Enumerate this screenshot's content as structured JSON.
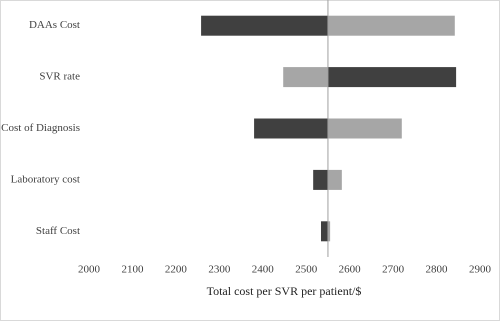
{
  "chart_data": {
    "type": "tornado",
    "categories": [
      "DAAs Cost",
      "SVR rate",
      "Cost of Diagnosis",
      "Laboratory cost",
      "Staff Cost"
    ],
    "base": 2550,
    "series": [
      {
        "color": "#404040",
        "values": [
          2258,
          2845,
          2380,
          2516,
          2534
        ]
      },
      {
        "color": "#a6a6a6",
        "values": [
          2842,
          2447,
          2720,
          2582,
          2555
        ]
      }
    ],
    "x_label": "Total cost per SVR per patient/$",
    "xlim": [
      2000,
      2900
    ],
    "xticks": [
      2000,
      2100,
      2200,
      2300,
      2400,
      2500,
      2600,
      2700,
      2800,
      2900
    ]
  }
}
